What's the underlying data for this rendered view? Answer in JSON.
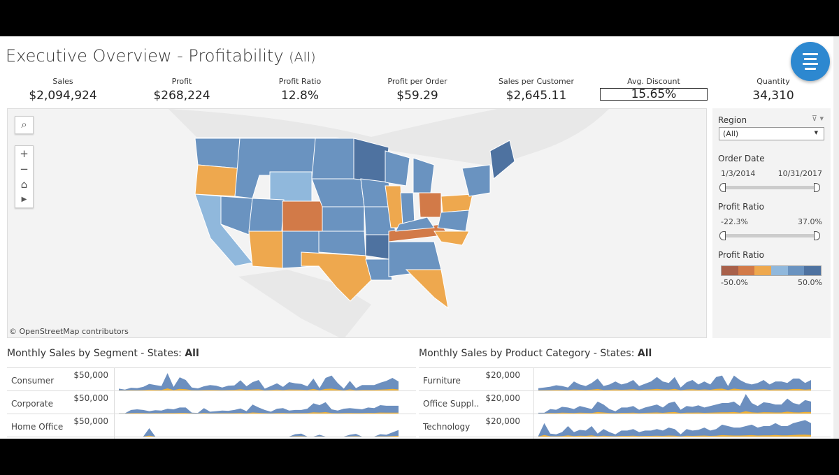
{
  "header": {
    "title": "Executive Overview - Profitability",
    "filter_suffix": "(All)"
  },
  "kpis": [
    {
      "label": "Sales",
      "value": "$2,094,924"
    },
    {
      "label": "Profit",
      "value": "$268,224"
    },
    {
      "label": "Profit Ratio",
      "value": "12.8%"
    },
    {
      "label": "Profit per Order",
      "value": "$59.29"
    },
    {
      "label": "Sales per Customer",
      "value": "$2,645.11"
    },
    {
      "label": "Avg. Discount",
      "value": "15.65%"
    },
    {
      "label": "Quantity",
      "value": "34,310"
    }
  ],
  "map": {
    "credit": "© OpenStreetMap contributors",
    "controls": [
      "search",
      "zoom-in",
      "zoom-out",
      "home",
      "play"
    ]
  },
  "filters": {
    "region": {
      "label": "Region",
      "value": "(All)"
    },
    "order_date": {
      "label": "Order Date",
      "min": "1/3/2014",
      "max": "10/31/2017"
    },
    "profit_ratio": {
      "label": "Profit Ratio",
      "min": "-22.3%",
      "max": "37.0%"
    },
    "legend": {
      "label": "Profit Ratio",
      "min": "-50.0%",
      "max": "50.0%",
      "colors": [
        "#a8604a",
        "#d27a48",
        "#eea84e",
        "#90b8dc",
        "#6a93c0",
        "#4e72a0"
      ]
    }
  },
  "colors": {
    "blue": "#6c8fbf",
    "orange": "#f2b233"
  },
  "chart_data": [
    {
      "type": "area",
      "title": "Monthly Sales by Segment - States:",
      "title_bold": "All",
      "axis_label": "$50,000",
      "ymax": 70000,
      "series": [
        {
          "name": "Consumer",
          "values": [
            6000,
            3000,
            9000,
            8000,
            12000,
            22000,
            18000,
            15000,
            58000,
            12000,
            44000,
            35000,
            10000,
            7000,
            14000,
            18000,
            16000,
            10000,
            16000,
            17000,
            34000,
            14000,
            28000,
            35000,
            6000,
            15000,
            24000,
            12000,
            28000,
            24000,
            22000,
            14000,
            40000,
            8000,
            42000,
            50000,
            25000,
            6000,
            32000,
            8000,
            18000,
            18000,
            18000,
            26000,
            32000,
            42000,
            30000
          ]
        },
        {
          "name": "Corporate",
          "values": [
            1000,
            1000,
            12000,
            14000,
            12000,
            8000,
            11000,
            10000,
            16000,
            14000,
            20000,
            20000,
            3000,
            2000,
            18000,
            6000,
            8000,
            10000,
            9000,
            12000,
            17000,
            8000,
            30000,
            20000,
            12000,
            6000,
            16000,
            18000,
            10000,
            12000,
            12000,
            16000,
            34000,
            28000,
            38000,
            14000,
            10000,
            16000,
            18000,
            16000,
            14000,
            20000,
            18000,
            28000,
            26000,
            26000,
            26000
          ]
        },
        {
          "name": "Home Office",
          "values": [
            0,
            0,
            0,
            0,
            0,
            28000,
            0,
            0,
            0,
            0,
            0,
            0,
            0,
            0,
            0,
            0,
            0,
            0,
            0,
            0,
            0,
            0,
            0,
            0,
            0,
            0,
            0,
            0,
            0,
            8000,
            10000,
            0,
            0,
            6000,
            0,
            0,
            0,
            0,
            6000,
            9000,
            0,
            0,
            0,
            8000,
            6000,
            14000,
            22000
          ]
        }
      ]
    },
    {
      "type": "area",
      "title": "Monthly Sales by Product Category - States:",
      "title_bold": "All",
      "axis_label": "$20,000",
      "ymax": 28000,
      "series": [
        {
          "name": "Furniture",
          "values": [
            3000,
            4000,
            5000,
            7000,
            6000,
            4000,
            12000,
            8000,
            6000,
            10000,
            16000,
            6000,
            8000,
            12000,
            8000,
            10000,
            14000,
            6000,
            9000,
            12000,
            18000,
            12000,
            10000,
            18000,
            4000,
            11000,
            14000,
            8000,
            12000,
            8000,
            18000,
            20000,
            6000,
            20000,
            14000,
            10000,
            8000,
            10000,
            14000,
            8000,
            12000,
            12000,
            10000,
            16000,
            16000,
            10000,
            14000
          ]
        },
        {
          "name": "Office Suppl..",
          "values": [
            1000,
            1000,
            6000,
            5000,
            9000,
            8000,
            6000,
            10000,
            8000,
            6000,
            16000,
            12000,
            6000,
            3000,
            8000,
            8000,
            10000,
            5000,
            8000,
            10000,
            12000,
            8000,
            14000,
            16000,
            5000,
            10000,
            9000,
            11000,
            8000,
            10000,
            12000,
            14000,
            14000,
            16000,
            10000,
            26000,
            14000,
            10000,
            15000,
            14000,
            12000,
            12000,
            20000,
            14000,
            12000,
            18000,
            16000
          ]
        },
        {
          "name": "Technology",
          "values": [
            1000,
            18000,
            4000,
            3000,
            6000,
            14000,
            6000,
            9000,
            8000,
            14000,
            4000,
            10000,
            6000,
            3000,
            8000,
            8000,
            10000,
            6000,
            8000,
            8000,
            10000,
            8000,
            12000,
            10000,
            3000,
            10000,
            8000,
            9000,
            12000,
            8000,
            10000,
            16000,
            14000,
            12000,
            12000,
            14000,
            16000,
            12000,
            14000,
            14000,
            18000,
            14000,
            14000,
            18000,
            20000,
            22000,
            18000
          ]
        }
      ]
    }
  ]
}
